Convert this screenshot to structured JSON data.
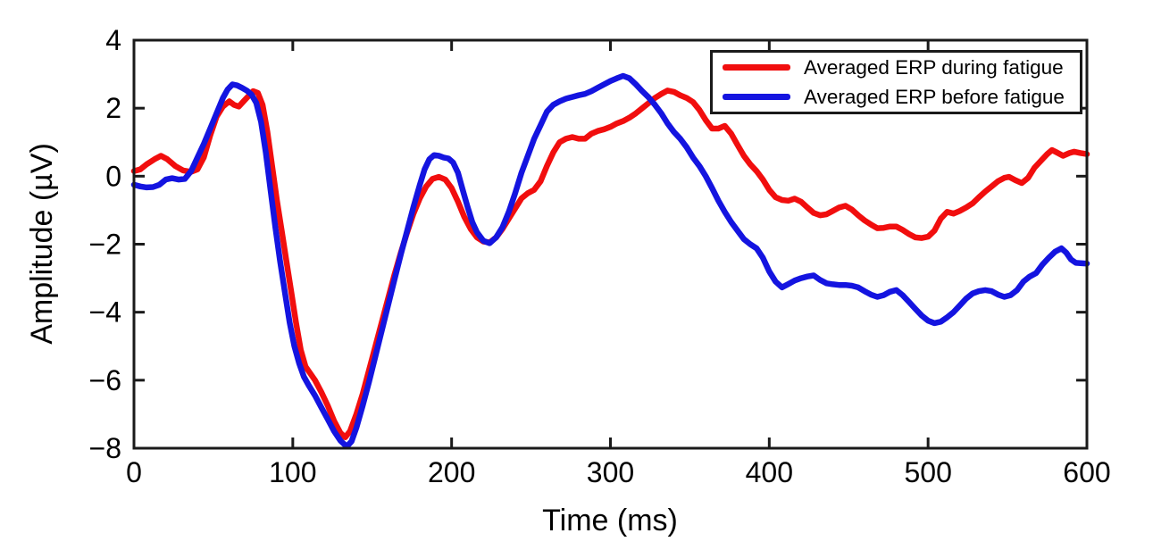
{
  "figure": {
    "background": "#ffffff",
    "axis_color": "#1a1a1a"
  },
  "chart_data": {
    "type": "line",
    "title": "",
    "xlabel": "Time (ms)",
    "ylabel": "Amplitude (µV)",
    "xlim": [
      0,
      600
    ],
    "ylim": [
      -8,
      4
    ],
    "xticks": [
      0,
      100,
      200,
      300,
      400,
      500,
      600
    ],
    "yticks": [
      -8,
      -6,
      -4,
      -2,
      0,
      2,
      4
    ],
    "grid": false,
    "legend": {
      "position": "top-right",
      "border": true
    },
    "series": [
      {
        "name": "Averaged ERP during fatigue",
        "color": "#f10e0e",
        "points": [
          [
            0,
            0.15
          ],
          [
            4,
            0.2
          ],
          [
            8,
            0.35
          ],
          [
            13,
            0.5
          ],
          [
            17,
            0.6
          ],
          [
            21,
            0.5
          ],
          [
            26,
            0.3
          ],
          [
            31,
            0.17
          ],
          [
            36,
            0.13
          ],
          [
            40,
            0.2
          ],
          [
            44,
            0.55
          ],
          [
            48,
            1.2
          ],
          [
            52,
            1.75
          ],
          [
            56,
            2.05
          ],
          [
            60,
            2.2
          ],
          [
            63,
            2.1
          ],
          [
            66,
            2.05
          ],
          [
            69,
            2.2
          ],
          [
            72,
            2.35
          ],
          [
            75,
            2.5
          ],
          [
            78,
            2.45
          ],
          [
            81,
            2.1
          ],
          [
            84,
            1.3
          ],
          [
            87,
            0.3
          ],
          [
            90,
            -0.7
          ],
          [
            93,
            -1.6
          ],
          [
            96,
            -2.5
          ],
          [
            99,
            -3.4
          ],
          [
            102,
            -4.3
          ],
          [
            105,
            -5.1
          ],
          [
            108,
            -5.6
          ],
          [
            111,
            -5.8
          ],
          [
            114,
            -6.0
          ],
          [
            118,
            -6.35
          ],
          [
            122,
            -6.75
          ],
          [
            126,
            -7.2
          ],
          [
            130,
            -7.55
          ],
          [
            133,
            -7.68
          ],
          [
            136,
            -7.5
          ],
          [
            140,
            -7.0
          ],
          [
            144,
            -6.4
          ],
          [
            148,
            -5.7
          ],
          [
            152,
            -5.0
          ],
          [
            156,
            -4.3
          ],
          [
            160,
            -3.6
          ],
          [
            164,
            -2.9
          ],
          [
            168,
            -2.25
          ],
          [
            172,
            -1.65
          ],
          [
            176,
            -1.1
          ],
          [
            180,
            -0.65
          ],
          [
            184,
            -0.3
          ],
          [
            188,
            -0.08
          ],
          [
            192,
            -0.02
          ],
          [
            196,
            -0.1
          ],
          [
            200,
            -0.35
          ],
          [
            204,
            -0.75
          ],
          [
            208,
            -1.2
          ],
          [
            212,
            -1.55
          ],
          [
            216,
            -1.8
          ],
          [
            220,
            -1.92
          ],
          [
            224,
            -1.95
          ],
          [
            228,
            -1.8
          ],
          [
            232,
            -1.55
          ],
          [
            236,
            -1.25
          ],
          [
            240,
            -0.95
          ],
          [
            244,
            -0.65
          ],
          [
            248,
            -0.5
          ],
          [
            252,
            -0.4
          ],
          [
            256,
            -0.15
          ],
          [
            260,
            0.3
          ],
          [
            264,
            0.7
          ],
          [
            268,
            1.0
          ],
          [
            272,
            1.1
          ],
          [
            276,
            1.15
          ],
          [
            280,
            1.1
          ],
          [
            284,
            1.1
          ],
          [
            288,
            1.25
          ],
          [
            292,
            1.33
          ],
          [
            296,
            1.38
          ],
          [
            300,
            1.45
          ],
          [
            304,
            1.55
          ],
          [
            308,
            1.62
          ],
          [
            312,
            1.72
          ],
          [
            316,
            1.85
          ],
          [
            320,
            2.0
          ],
          [
            324,
            2.15
          ],
          [
            328,
            2.3
          ],
          [
            332,
            2.42
          ],
          [
            336,
            2.52
          ],
          [
            340,
            2.48
          ],
          [
            344,
            2.38
          ],
          [
            348,
            2.3
          ],
          [
            352,
            2.18
          ],
          [
            356,
            1.95
          ],
          [
            360,
            1.65
          ],
          [
            364,
            1.4
          ],
          [
            368,
            1.4
          ],
          [
            372,
            1.48
          ],
          [
            376,
            1.25
          ],
          [
            380,
            0.92
          ],
          [
            384,
            0.6
          ],
          [
            388,
            0.35
          ],
          [
            392,
            0.15
          ],
          [
            396,
            -0.1
          ],
          [
            400,
            -0.4
          ],
          [
            404,
            -0.62
          ],
          [
            408,
            -0.7
          ],
          [
            412,
            -0.72
          ],
          [
            416,
            -0.66
          ],
          [
            420,
            -0.75
          ],
          [
            424,
            -0.92
          ],
          [
            428,
            -1.08
          ],
          [
            432,
            -1.15
          ],
          [
            436,
            -1.12
          ],
          [
            440,
            -1.02
          ],
          [
            444,
            -0.92
          ],
          [
            448,
            -0.87
          ],
          [
            452,
            -0.98
          ],
          [
            456,
            -1.15
          ],
          [
            460,
            -1.3
          ],
          [
            464,
            -1.42
          ],
          [
            468,
            -1.53
          ],
          [
            472,
            -1.52
          ],
          [
            476,
            -1.48
          ],
          [
            480,
            -1.48
          ],
          [
            484,
            -1.58
          ],
          [
            488,
            -1.7
          ],
          [
            492,
            -1.8
          ],
          [
            496,
            -1.82
          ],
          [
            500,
            -1.78
          ],
          [
            504,
            -1.6
          ],
          [
            508,
            -1.25
          ],
          [
            512,
            -1.05
          ],
          [
            516,
            -1.1
          ],
          [
            520,
            -1.02
          ],
          [
            524,
            -0.92
          ],
          [
            528,
            -0.8
          ],
          [
            532,
            -0.62
          ],
          [
            536,
            -0.45
          ],
          [
            540,
            -0.3
          ],
          [
            544,
            -0.15
          ],
          [
            548,
            -0.05
          ],
          [
            551,
            -0.02
          ],
          [
            555,
            -0.12
          ],
          [
            559,
            -0.2
          ],
          [
            563,
            -0.05
          ],
          [
            567,
            0.25
          ],
          [
            571,
            0.45
          ],
          [
            575,
            0.65
          ],
          [
            578,
            0.77
          ],
          [
            581,
            0.7
          ],
          [
            585,
            0.6
          ],
          [
            589,
            0.68
          ],
          [
            592,
            0.72
          ],
          [
            596,
            0.68
          ],
          [
            600,
            0.65
          ]
        ]
      },
      {
        "name": "Averaged ERP before fatigue",
        "color": "#1414e0",
        "points": [
          [
            0,
            -0.25
          ],
          [
            4,
            -0.3
          ],
          [
            8,
            -0.33
          ],
          [
            12,
            -0.32
          ],
          [
            16,
            -0.25
          ],
          [
            20,
            -0.1
          ],
          [
            24,
            -0.06
          ],
          [
            28,
            -0.1
          ],
          [
            32,
            -0.08
          ],
          [
            36,
            0.15
          ],
          [
            40,
            0.55
          ],
          [
            44,
            0.95
          ],
          [
            48,
            1.4
          ],
          [
            52,
            1.85
          ],
          [
            56,
            2.3
          ],
          [
            59,
            2.55
          ],
          [
            62,
            2.7
          ],
          [
            65,
            2.67
          ],
          [
            68,
            2.6
          ],
          [
            71,
            2.52
          ],
          [
            74,
            2.4
          ],
          [
            77,
            2.16
          ],
          [
            80,
            1.6
          ],
          [
            83,
            0.7
          ],
          [
            86,
            -0.4
          ],
          [
            89,
            -1.5
          ],
          [
            92,
            -2.5
          ],
          [
            95,
            -3.4
          ],
          [
            98,
            -4.3
          ],
          [
            101,
            -5.0
          ],
          [
            104,
            -5.5
          ],
          [
            107,
            -5.9
          ],
          [
            110,
            -6.15
          ],
          [
            114,
            -6.45
          ],
          [
            118,
            -6.8
          ],
          [
            122,
            -7.15
          ],
          [
            126,
            -7.5
          ],
          [
            130,
            -7.78
          ],
          [
            134,
            -7.95
          ],
          [
            137,
            -7.8
          ],
          [
            140,
            -7.4
          ],
          [
            144,
            -6.75
          ],
          [
            148,
            -6.05
          ],
          [
            152,
            -5.3
          ],
          [
            156,
            -4.55
          ],
          [
            160,
            -3.8
          ],
          [
            164,
            -3.05
          ],
          [
            168,
            -2.3
          ],
          [
            172,
            -1.6
          ],
          [
            176,
            -0.9
          ],
          [
            180,
            -0.25
          ],
          [
            183,
            0.2
          ],
          [
            186,
            0.5
          ],
          [
            189,
            0.62
          ],
          [
            192,
            0.6
          ],
          [
            195,
            0.55
          ],
          [
            198,
            0.52
          ],
          [
            201,
            0.4
          ],
          [
            204,
            0.1
          ],
          [
            207,
            -0.4
          ],
          [
            210,
            -0.9
          ],
          [
            213,
            -1.35
          ],
          [
            216,
            -1.65
          ],
          [
            220,
            -1.9
          ],
          [
            224,
            -1.97
          ],
          [
            228,
            -1.8
          ],
          [
            232,
            -1.5
          ],
          [
            236,
            -1.05
          ],
          [
            240,
            -0.5
          ],
          [
            244,
            0.1
          ],
          [
            248,
            0.6
          ],
          [
            252,
            1.1
          ],
          [
            256,
            1.5
          ],
          [
            260,
            1.9
          ],
          [
            264,
            2.1
          ],
          [
            268,
            2.2
          ],
          [
            272,
            2.28
          ],
          [
            276,
            2.33
          ],
          [
            280,
            2.38
          ],
          [
            284,
            2.42
          ],
          [
            288,
            2.5
          ],
          [
            292,
            2.6
          ],
          [
            296,
            2.7
          ],
          [
            300,
            2.8
          ],
          [
            304,
            2.88
          ],
          [
            308,
            2.95
          ],
          [
            312,
            2.88
          ],
          [
            316,
            2.7
          ],
          [
            320,
            2.5
          ],
          [
            324,
            2.32
          ],
          [
            328,
            2.1
          ],
          [
            332,
            1.85
          ],
          [
            336,
            1.55
          ],
          [
            340,
            1.3
          ],
          [
            344,
            1.1
          ],
          [
            348,
            0.85
          ],
          [
            352,
            0.55
          ],
          [
            356,
            0.3
          ],
          [
            360,
            0.0
          ],
          [
            364,
            -0.35
          ],
          [
            368,
            -0.72
          ],
          [
            372,
            -1.05
          ],
          [
            376,
            -1.35
          ],
          [
            380,
            -1.6
          ],
          [
            384,
            -1.85
          ],
          [
            388,
            -2.0
          ],
          [
            392,
            -2.12
          ],
          [
            396,
            -2.4
          ],
          [
            400,
            -2.8
          ],
          [
            404,
            -3.1
          ],
          [
            408,
            -3.27
          ],
          [
            412,
            -3.17
          ],
          [
            416,
            -3.07
          ],
          [
            420,
            -3.0
          ],
          [
            424,
            -2.95
          ],
          [
            428,
            -2.92
          ],
          [
            432,
            -3.05
          ],
          [
            436,
            -3.15
          ],
          [
            440,
            -3.18
          ],
          [
            444,
            -3.2
          ],
          [
            448,
            -3.2
          ],
          [
            452,
            -3.22
          ],
          [
            456,
            -3.27
          ],
          [
            460,
            -3.38
          ],
          [
            464,
            -3.48
          ],
          [
            468,
            -3.55
          ],
          [
            472,
            -3.5
          ],
          [
            476,
            -3.4
          ],
          [
            480,
            -3.35
          ],
          [
            484,
            -3.5
          ],
          [
            488,
            -3.7
          ],
          [
            492,
            -3.9
          ],
          [
            496,
            -4.1
          ],
          [
            500,
            -4.25
          ],
          [
            504,
            -4.32
          ],
          [
            508,
            -4.28
          ],
          [
            512,
            -4.15
          ],
          [
            516,
            -4.0
          ],
          [
            520,
            -3.8
          ],
          [
            524,
            -3.6
          ],
          [
            528,
            -3.45
          ],
          [
            532,
            -3.38
          ],
          [
            536,
            -3.35
          ],
          [
            540,
            -3.38
          ],
          [
            544,
            -3.48
          ],
          [
            548,
            -3.55
          ],
          [
            552,
            -3.5
          ],
          [
            556,
            -3.35
          ],
          [
            560,
            -3.1
          ],
          [
            564,
            -2.95
          ],
          [
            568,
            -2.85
          ],
          [
            572,
            -2.6
          ],
          [
            576,
            -2.4
          ],
          [
            580,
            -2.22
          ],
          [
            584,
            -2.12
          ],
          [
            587,
            -2.25
          ],
          [
            590,
            -2.45
          ],
          [
            593,
            -2.55
          ],
          [
            596,
            -2.56
          ],
          [
            600,
            -2.57
          ]
        ]
      }
    ]
  }
}
